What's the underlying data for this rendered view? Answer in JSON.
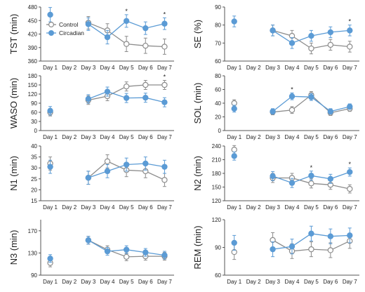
{
  "colors": {
    "control": "#8c8c8c",
    "circadian": "#5b9bd5",
    "axis": "#555555",
    "text": "#222222"
  },
  "legend": {
    "control": "Control",
    "circadian": "Circadian",
    "placement": "top-left",
    "panel": 0
  },
  "chart_data": [
    {
      "type": "line",
      "ylabel": "TST (min)",
      "ylim": [
        360,
        480
      ],
      "yticks": [
        360,
        390,
        420,
        450,
        480
      ],
      "categories": [
        "Day 1",
        "Day 2",
        "Day 3",
        "Day 4",
        "Day 5",
        "Day 6",
        "Day 7"
      ],
      "series": [
        {
          "name": "Control",
          "values": [
            null,
            null,
            445,
            428,
            398,
            394,
            392
          ],
          "errors": [
            null,
            null,
            14,
            15,
            17,
            17,
            17
          ]
        },
        {
          "name": "Circadian",
          "values": [
            463,
            null,
            442,
            413,
            449,
            433,
            443
          ],
          "errors": [
            16,
            null,
            14,
            15,
            14,
            14,
            13
          ]
        }
      ],
      "significant": [
        "",
        "",
        "",
        "",
        "*",
        "",
        "*"
      ]
    },
    {
      "type": "line",
      "ylabel": "SE (%)",
      "ylim": [
        60,
        90
      ],
      "yticks": [
        60,
        70,
        80,
        90
      ],
      "categories": [
        "Day 1",
        "Day 2",
        "Day 3",
        "Day 4",
        "Day 5",
        "Day 6",
        "Day 7"
      ],
      "series": [
        {
          "name": "Control",
          "values": [
            null,
            null,
            77,
            74,
            67,
            69,
            68
          ],
          "errors": [
            null,
            null,
            3,
            3,
            3,
            3,
            3
          ]
        },
        {
          "name": "Circadian",
          "values": [
            82,
            null,
            77,
            70,
            74,
            76,
            77
          ],
          "errors": [
            3,
            null,
            3,
            3,
            3,
            3,
            3
          ]
        }
      ],
      "significant": [
        "",
        "",
        "",
        "",
        "",
        "",
        "*"
      ]
    },
    {
      "type": "line",
      "ylabel": "WASO (min)",
      "ylim": [
        0,
        180
      ],
      "yticks": [
        0,
        30,
        60,
        90,
        120,
        150,
        180
      ],
      "categories": [
        "Day 1",
        "Day 2",
        "Day 3",
        "Day 4",
        "Day 5",
        "Day 6",
        "Day 7"
      ],
      "series": [
        {
          "name": "Control",
          "values": [
            60,
            null,
            100,
            113,
            145,
            150,
            150
          ],
          "errors": [
            12,
            null,
            14,
            15,
            15,
            15,
            15
          ]
        },
        {
          "name": "Circadian",
          "values": [
            65,
            null,
            104,
            128,
            107,
            108,
            93
          ],
          "errors": [
            14,
            null,
            14,
            15,
            15,
            15,
            15
          ]
        }
      ],
      "significant": [
        "",
        "",
        "",
        "",
        "",
        "",
        "*"
      ]
    },
    {
      "type": "line",
      "ylabel": "SOL (min)",
      "ylim": [
        0,
        80
      ],
      "yticks": [
        0,
        20,
        40,
        60,
        80
      ],
      "categories": [
        "Day 1",
        "Day 2",
        "Day 3",
        "Day 4",
        "Day 5",
        "Day 6",
        "Day 7"
      ],
      "series": [
        {
          "name": "Control",
          "values": [
            40,
            null,
            27,
            30,
            52,
            26,
            32
          ],
          "errors": [
            5,
            null,
            4,
            5,
            5,
            4,
            4
          ]
        },
        {
          "name": "Circadian",
          "values": [
            32,
            null,
            28,
            50,
            49,
            28,
            35
          ],
          "errors": [
            5,
            null,
            4,
            5,
            5,
            4,
            4
          ]
        }
      ],
      "significant": [
        "",
        "",
        "",
        "*",
        "",
        "",
        ""
      ]
    },
    {
      "type": "line",
      "ylabel": "N1 (min)",
      "ylim": [
        15,
        40
      ],
      "yticks": [
        15,
        20,
        25,
        30,
        35,
        40
      ],
      "categories": [
        "Day 1",
        "Day 2",
        "Day 3",
        "Day 4",
        "Day 5",
        "Day 6",
        "Day 7"
      ],
      "series": [
        {
          "name": "Control",
          "values": [
            32,
            null,
            25.5,
            33,
            29,
            28.5,
            24.5
          ],
          "errors": [
            3,
            null,
            3,
            3,
            3,
            3,
            3
          ]
        },
        {
          "name": "Circadian",
          "values": [
            30.5,
            null,
            25.5,
            28.5,
            31.5,
            32,
            30.5
          ],
          "errors": [
            3,
            null,
            3,
            3,
            3,
            3,
            3
          ]
        }
      ],
      "significant": [
        "",
        "",
        "",
        "",
        "",
        "",
        ""
      ]
    },
    {
      "type": "line",
      "ylabel": "N2 (min)",
      "ylim": [
        120,
        240
      ],
      "yticks": [
        120,
        150,
        180,
        210,
        240
      ],
      "categories": [
        "Day 1",
        "Day 2",
        "Day 3",
        "Day 4",
        "Day 5",
        "Day 6",
        "Day 7"
      ],
      "series": [
        {
          "name": "Control",
          "values": [
            232,
            null,
            170,
            170,
            158,
            155,
            146
          ],
          "errors": [
            9,
            null,
            10,
            10,
            10,
            10,
            9
          ]
        },
        {
          "name": "Circadian",
          "values": [
            218,
            null,
            174,
            159,
            175,
            168,
            183
          ],
          "errors": [
            9,
            null,
            10,
            10,
            10,
            10,
            9
          ]
        }
      ],
      "significant": [
        "",
        "",
        "",
        "",
        "*",
        "",
        "*"
      ]
    },
    {
      "type": "line",
      "ylabel": "N3 (min)",
      "ylim": [
        90,
        190
      ],
      "yticks": [
        90,
        130,
        170
      ],
      "categories": [
        "Day 1",
        "Day 2",
        "Day 3",
        "Day 4",
        "Day 5",
        "Day 6",
        "Day 7"
      ],
      "series": [
        {
          "name": "Control",
          "values": [
            112,
            null,
            153,
            136,
            123,
            124,
            124
          ],
          "errors": [
            7,
            null,
            7,
            7,
            7,
            7,
            7
          ]
        },
        {
          "name": "Circadian",
          "values": [
            120,
            null,
            153,
            133,
            136,
            131,
            126
          ],
          "errors": [
            7,
            null,
            7,
            7,
            7,
            7,
            7
          ]
        }
      ],
      "significant": [
        "",
        "",
        "",
        "",
        "",
        "",
        ""
      ]
    },
    {
      "type": "line",
      "ylabel": "REM (min)",
      "ylim": [
        60,
        120
      ],
      "yticks": [
        60,
        90,
        120
      ],
      "categories": [
        "Day 1",
        "Day 2",
        "Day 3",
        "Day 4",
        "Day 5",
        "Day 6",
        "Day 7"
      ],
      "series": [
        {
          "name": "Control",
          "values": [
            85,
            null,
            98,
            86,
            88,
            87,
            97
          ],
          "errors": [
            8,
            null,
            8,
            8,
            8,
            8,
            8
          ]
        },
        {
          "name": "Circadian",
          "values": [
            95,
            null,
            88,
            91,
            105,
            102,
            103
          ],
          "errors": [
            8,
            null,
            8,
            8,
            8,
            8,
            8
          ]
        }
      ],
      "significant": [
        "",
        "",
        "",
        "",
        "",
        "",
        ""
      ]
    }
  ]
}
